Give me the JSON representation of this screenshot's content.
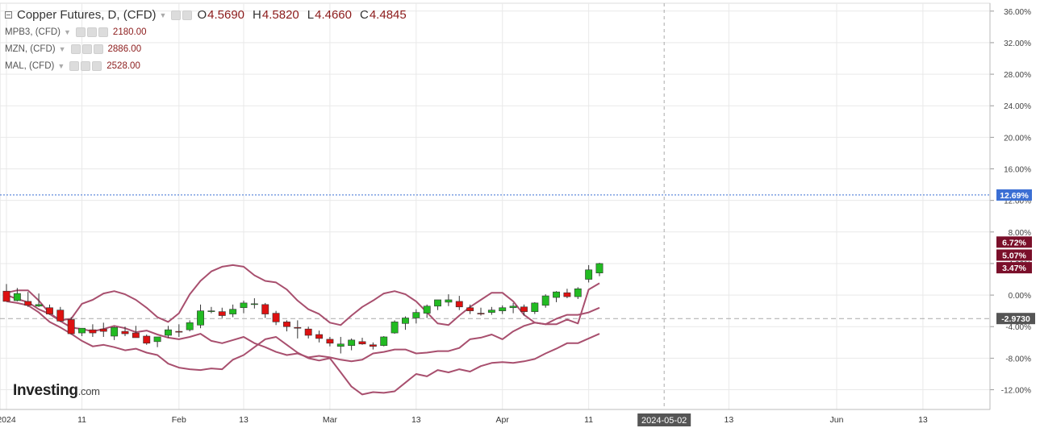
{
  "legend": {
    "main_title": "Copper Futures, D, (CFD)",
    "open": "4.5690",
    "high": "4.5820",
    "low": "4.4660",
    "close": "4.4845",
    "open_key": "O",
    "high_key": "H",
    "low_key": "L",
    "close_key": "C",
    "compare": [
      {
        "name": "MPB3, (CFD)",
        "value": "2180.00"
      },
      {
        "name": "MZN, (CFD)",
        "value": "2886.00"
      },
      {
        "name": "MAL, (CFD)",
        "value": "2528.00"
      }
    ]
  },
  "logo": {
    "brand": "Investing",
    "domain": ".com"
  },
  "colors": {
    "up": "#22bb22",
    "down": "#dd1111",
    "compare_line": "#a84f6e",
    "current_badge": "#3b6fd4",
    "compare_badge": "#7a0f2a",
    "ref_badge": "#555555",
    "grid": "#e9e9e9"
  },
  "chart_data": {
    "type": "candlestick",
    "y_unit": "percent change",
    "ylim": [
      -14.5,
      37
    ],
    "y_ticks": [
      36,
      32,
      28,
      24,
      20,
      16,
      12,
      8,
      4,
      0,
      -4,
      -8,
      -12
    ],
    "y_tick_labels": [
      "36.00%",
      "32.00%",
      "28.00%",
      "24.00%",
      "20.00%",
      "16.00%",
      "12.00%",
      "8.00%",
      "4.00%",
      "0.00%",
      "-4.00%",
      "-8.00%",
      "-12.00%"
    ],
    "x_ticks": [
      {
        "label": "2024",
        "index": 0
      },
      {
        "label": "11",
        "index": 7
      },
      {
        "label": "Feb",
        "index": 16
      },
      {
        "label": "13",
        "index": 22
      },
      {
        "label": "Mar",
        "index": 30
      },
      {
        "label": "13",
        "index": 38
      },
      {
        "label": "Apr",
        "index": 46
      },
      {
        "label": "11",
        "index": 54
      },
      {
        "label": "13",
        "index": 67
      },
      {
        "label": "Jun",
        "index": 77
      },
      {
        "label": "13",
        "index": 85
      }
    ],
    "crosshair": {
      "index": 61,
      "date_label": "2024-05-02"
    },
    "current_percent": {
      "value": 12.69,
      "label": "12.69%"
    },
    "reference_line": {
      "value": -2.973,
      "label": "-2.9730"
    },
    "compare_labels": [
      {
        "value": 6.72,
        "label": "6.72%"
      },
      {
        "value": 5.07,
        "label": "5.07%"
      },
      {
        "value": 3.47,
        "label": "3.47%"
      }
    ],
    "candles": [
      [
        0.5,
        1.4,
        -0.6,
        -0.8
      ],
      [
        -0.7,
        0.9,
        -0.8,
        0.2
      ],
      [
        -0.8,
        0.4,
        -1.5,
        -1.3
      ],
      [
        -1.4,
        0.2,
        -1.5,
        -1.2
      ],
      [
        -1.6,
        -1.2,
        -2.5,
        -2.4
      ],
      [
        -1.9,
        -1.5,
        -3.4,
        -3.3
      ],
      [
        -3.1,
        -2.8,
        -5.0,
        -4.9
      ],
      [
        -4.8,
        -4.2,
        -5.2,
        -4.2
      ],
      [
        -4.4,
        -3.7,
        -5.3,
        -4.8
      ],
      [
        -4.3,
        -3.5,
        -5.3,
        -4.6
      ],
      [
        -5.2,
        -4.0,
        -5.7,
        -4.1
      ],
      [
        -4.6,
        -4.0,
        -5.2,
        -4.9
      ],
      [
        -4.8,
        -3.9,
        -5.4,
        -5.4
      ],
      [
        -5.2,
        -5.0,
        -6.3,
        -6.1
      ],
      [
        -5.9,
        -5.4,
        -6.6,
        -5.3
      ],
      [
        -5.1,
        -3.9,
        -5.4,
        -4.4
      ],
      [
        -4.6,
        -3.7,
        -5.3,
        -4.7
      ],
      [
        -4.4,
        -3.2,
        -4.6,
        -3.5
      ],
      [
        -3.8,
        -1.2,
        -4.2,
        -2.0
      ],
      [
        -2.1,
        -1.5,
        -2.3,
        -2.0
      ],
      [
        -2.1,
        -1.6,
        -2.9,
        -2.6
      ],
      [
        -2.4,
        -1.2,
        -2.8,
        -1.8
      ],
      [
        -1.6,
        -0.7,
        -2.3,
        -1.0
      ],
      [
        -1.1,
        -0.4,
        -1.7,
        -1.1
      ],
      [
        -1.2,
        -1.0,
        -2.9,
        -2.4
      ],
      [
        -2.3,
        -2.0,
        -3.8,
        -3.4
      ],
      [
        -3.4,
        -3.2,
        -4.6,
        -4.0
      ],
      [
        -4.1,
        -3.2,
        -5.5,
        -4.2
      ],
      [
        -4.3,
        -4.0,
        -5.5,
        -5.1
      ],
      [
        -5.0,
        -4.5,
        -6.0,
        -5.5
      ],
      [
        -5.6,
        -5.3,
        -6.5,
        -6.1
      ],
      [
        -6.5,
        -5.3,
        -7.4,
        -6.2
      ],
      [
        -6.4,
        -5.5,
        -7.0,
        -5.7
      ],
      [
        -5.9,
        -5.4,
        -6.3,
        -6.2
      ],
      [
        -6.3,
        -6.0,
        -6.9,
        -6.5
      ],
      [
        -6.4,
        -5.2,
        -6.5,
        -5.3
      ],
      [
        -4.8,
        -3.2,
        -4.9,
        -3.4
      ],
      [
        -3.6,
        -2.7,
        -4.4,
        -2.9
      ],
      [
        -2.9,
        -1.8,
        -3.6,
        -2.2
      ],
      [
        -2.3,
        -1.2,
        -2.9,
        -1.4
      ],
      [
        -1.4,
        -0.6,
        -1.9,
        -0.6
      ],
      [
        -0.9,
        0.1,
        -1.4,
        -0.6
      ],
      [
        -0.8,
        -0.1,
        -1.9,
        -1.5
      ],
      [
        -1.6,
        -1.2,
        -2.4,
        -2.0
      ],
      [
        -2.3,
        -1.6,
        -2.6,
        -2.4
      ],
      [
        -2.2,
        -1.5,
        -2.5,
        -1.9
      ],
      [
        -2.0,
        -1.3,
        -2.4,
        -1.6
      ],
      [
        -1.6,
        -1.0,
        -2.3,
        -1.4
      ],
      [
        -1.5,
        -1.2,
        -2.6,
        -2.1
      ],
      [
        -2.1,
        -0.9,
        -2.4,
        -1.0
      ],
      [
        -1.3,
        0.1,
        -1.6,
        -0.1
      ],
      [
        -0.3,
        0.5,
        -0.9,
        0.4
      ],
      [
        0.3,
        0.8,
        -0.4,
        -0.2
      ],
      [
        -0.2,
        1.0,
        -0.5,
        0.8
      ],
      [
        2.0,
        3.8,
        1.6,
        3.2
      ],
      [
        2.8,
        4.1,
        2.4,
        4.0
      ]
    ],
    "candle_note": "each candle is [open, high, low, close] in percent",
    "series": [
      {
        "name": "MPB3, (CFD)",
        "values": [
          0.3,
          0.6,
          0.6,
          -0.7,
          -2.3,
          -3.2,
          -3.0,
          -1.1,
          -0.6,
          0.2,
          0.5,
          0.1,
          -0.6,
          -1.6,
          -2.8,
          -3.4,
          -2.3,
          0.1,
          1.8,
          3.0,
          3.6,
          3.8,
          3.6,
          2.5,
          1.8,
          1.6,
          0.7,
          -0.7,
          -1.8,
          -2.4,
          -3.5,
          -3.8,
          -2.6,
          -1.5,
          -0.7,
          0.2,
          0.5,
          0.1,
          -0.8,
          -2.2,
          -3.6,
          -3.8,
          -2.6,
          -1.5,
          -0.6,
          0.3,
          0.3,
          -0.8,
          -2.5,
          -3.5,
          -3.7,
          -3.7,
          -3.1,
          -3.6,
          0.7,
          1.5
        ]
      },
      {
        "name": "MZN, (CFD)",
        "values": [
          0.0,
          -0.5,
          -0.9,
          -1.8,
          -2.4,
          -3.3,
          -4.1,
          -4.3,
          -4.6,
          -4.3,
          -3.9,
          -4.2,
          -4.7,
          -4.5,
          -5.0,
          -5.4,
          -5.6,
          -5.3,
          -4.9,
          -5.8,
          -6.1,
          -5.7,
          -5.3,
          -6.1,
          -6.6,
          -7.2,
          -7.6,
          -7.4,
          -7.9,
          -7.7,
          -7.9,
          -8.2,
          -8.4,
          -8.2,
          -7.4,
          -7.2,
          -6.9,
          -6.9,
          -7.4,
          -7.3,
          -7.1,
          -7.1,
          -6.7,
          -5.6,
          -5.4,
          -5.0,
          -5.6,
          -4.6,
          -3.9,
          -3.5,
          -3.7,
          -3.0,
          -2.5,
          -2.5,
          -2.2,
          -1.6
        ]
      },
      {
        "name": "MAL, (CFD)",
        "values": [
          -0.8,
          -1.0,
          -1.3,
          -2.2,
          -3.4,
          -4.1,
          -4.9,
          -5.8,
          -6.5,
          -6.3,
          -6.6,
          -7.0,
          -6.8,
          -7.3,
          -7.6,
          -8.7,
          -9.2,
          -9.4,
          -9.5,
          -9.3,
          -9.4,
          -8.2,
          -7.6,
          -6.6,
          -5.6,
          -5.3,
          -6.3,
          -7.3,
          -8.0,
          -8.3,
          -8.0,
          -9.8,
          -11.6,
          -12.6,
          -12.3,
          -12.4,
          -12.2,
          -11.1,
          -10.0,
          -10.3,
          -9.5,
          -9.8,
          -9.4,
          -9.7,
          -9.0,
          -8.6,
          -8.5,
          -8.6,
          -8.4,
          -8.1,
          -7.4,
          -6.8,
          -6.1,
          -6.1,
          -5.5,
          -4.9
        ]
      }
    ]
  }
}
